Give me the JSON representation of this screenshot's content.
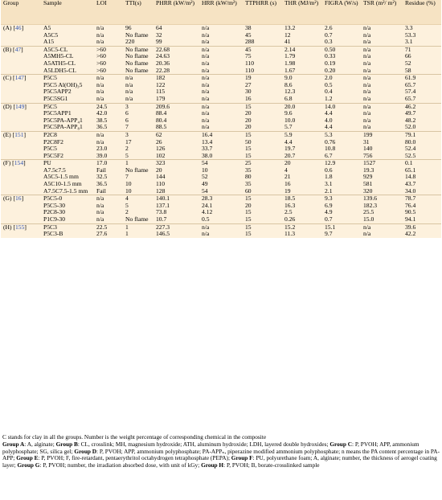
{
  "headers": [
    "Group",
    "Sample",
    "LOI",
    "TTI(s)",
    "PHRR (kW/m²)",
    "HRR (kW/m²)",
    "TTPHRR (s)",
    "THR (MJ/m²)",
    "FIGRA (W/s)",
    "TSR (m²/ m²)",
    "Residue (%)"
  ],
  "groups": [
    {
      "label": "(A) [",
      "ref": "46",
      "close": "]",
      "rows": [
        [
          "A5",
          "n/a",
          "96",
          "64",
          "n/a",
          "38",
          "13.2",
          "2.6",
          "n/a",
          "3.3"
        ],
        [
          "A5C5",
          "n/a",
          "No flame",
          "32",
          "n/a",
          "45",
          "12",
          "0.7",
          "n/a",
          "53.3"
        ],
        [
          "A15",
          "n/a",
          "220",
          "99",
          "n/a",
          "288",
          "41",
          "0.3",
          "n/a",
          "3.1"
        ]
      ]
    },
    {
      "label": "(B) [",
      "ref": "47",
      "close": "]",
      "rows": [
        [
          "A5C5-CL",
          ">60",
          "No flame",
          "22.68",
          "n/a",
          "45",
          "2.14",
          "0.50",
          "n/a",
          "71"
        ],
        [
          "A5MH5-CL",
          ">60",
          "No flame",
          "24.63",
          "n/a",
          "75",
          "1.79",
          "0.33",
          "n/a",
          "66"
        ],
        [
          "A5ATH5-CL",
          ">60",
          "No flame",
          "20.36",
          "n/a",
          "110",
          "1.98",
          "0.19",
          "n/a",
          "52"
        ],
        [
          "A5LDH5-CL",
          ">60",
          "No flame",
          "22.28",
          "n/a",
          "110",
          "1.67",
          "0.20",
          "n/a",
          "58"
        ]
      ]
    },
    {
      "label": "(C) [",
      "ref": "147",
      "close": "]",
      "rows": [
        [
          "P5C5",
          "n/a",
          "n/a",
          "182",
          "n/a",
          "19",
          "9.0",
          "2.0",
          "n/a",
          "61.9"
        ],
        [
          "P5C5 Al(OH)₃5",
          "n/a",
          "n/a",
          "122",
          "n/a",
          "27",
          "8.6",
          "0.5",
          "n/a",
          "65.7"
        ],
        [
          "P5C5APP2",
          "n/a",
          "n/a",
          "115",
          "n/a",
          "30",
          "12.3",
          "0.4",
          "n/a",
          "57.4"
        ],
        [
          "P5C5SG1",
          "n/a",
          "n/a",
          "179",
          "n/a",
          "16",
          "6.8",
          "1.2",
          "n/a",
          "65.7"
        ]
      ]
    },
    {
      "label": "(D) [",
      "ref": "149",
      "close": "]",
      "rows": [
        [
          "P5C5",
          "24.5",
          "3",
          "209.6",
          "n/a",
          "15",
          "20.0",
          "14.0",
          "n/a",
          "46.2"
        ],
        [
          "P5C5APP1",
          "42.0",
          "6",
          "88.4",
          "n/a",
          "20",
          "9.6",
          "4.4",
          "n/a",
          "49.7"
        ],
        [
          "P5C5PA-APP₄1",
          "38.5",
          "6",
          "80.4",
          "n/a",
          "20",
          "10.0",
          "4.0",
          "n/a",
          "48.2"
        ],
        [
          "P5C5PA-APP₈1",
          "36.5",
          "7",
          "88.5",
          "n/a",
          "20",
          "5.7",
          "4.4",
          "n/a",
          "52.0"
        ]
      ]
    },
    {
      "label": "(E) [",
      "ref": "151",
      "close": "]",
      "rows": [
        [
          "P2C8",
          "n/a",
          "3",
          "62",
          "16.4",
          "15",
          "5.9",
          "5.3",
          "199",
          "79.1"
        ],
        [
          "P2C8F2",
          "n/a",
          "17",
          "26",
          "13.4",
          "50",
          "4.4",
          "0.76",
          "31",
          "80.0"
        ],
        [
          "P5C5",
          "23.0",
          "2",
          "126",
          "33.7",
          "15",
          "19.7",
          "10.8",
          "140",
          "52.4"
        ],
        [
          "P5C5F2",
          "39.0",
          "5",
          "102",
          "38.0",
          "15",
          "20.7",
          "6.7",
          "756",
          "52.5"
        ]
      ]
    },
    {
      "label": "(F) [",
      "ref": "154",
      "close": "]",
      "rows": [
        [
          "PU",
          "17.0",
          "1",
          "323",
          "54",
          "25",
          "20",
          "12.9",
          "1527",
          "0.1"
        ],
        [
          "A7.5c7.5",
          "Fail",
          "No flame",
          "20",
          "10",
          "35",
          "4",
          "0.6",
          "19.3",
          "65.1"
        ],
        [
          "A5C5-1.5 mm",
          "32.5",
          "7",
          "144",
          "52",
          "80",
          "21",
          "1.8",
          "929",
          "14.8"
        ],
        [
          "A5C10-1.5 mm",
          "36.5",
          "10",
          "110",
          "49",
          "35",
          "16",
          "3.1",
          "581",
          "43.7"
        ],
        [
          "A7.5C7.5-1.5 mm",
          "Fail",
          "10",
          "128",
          "54",
          "60",
          "19",
          "2.1",
          "320",
          "34.0"
        ]
      ]
    },
    {
      "label": "(G) [",
      "ref": "16",
      "close": "]",
      "rows": [
        [
          "P5C5-0",
          "n/a",
          "4",
          "140.1",
          "28.3",
          "15",
          "18.5",
          "9.3",
          "139.6",
          "78.7"
        ],
        [
          "P5C5-30",
          "n/a",
          "5",
          "137.1",
          "24.1",
          "20",
          "16.3",
          "6.9",
          "182.3",
          "76.4"
        ],
        [
          "P2C8-30",
          "n/a",
          "2",
          "73.8",
          "4.12",
          "15",
          "2.5",
          "4.9",
          "25.5",
          "90.5"
        ],
        [
          "P1C9-30",
          "n/a",
          "No flame",
          "10.7",
          "0.5",
          "15",
          "0.26",
          "0.7",
          "15.0",
          "94.1"
        ]
      ]
    },
    {
      "label": "(H) [",
      "ref": "155",
      "close": "]",
      "rows": [
        [
          "P5C3",
          "22.5",
          "1",
          "227.3",
          "n/a",
          "15",
          "15.2",
          "15.1",
          "n/a",
          "39.6"
        ],
        [
          "P5C3-B",
          "27.6",
          "1",
          "146.5",
          "n/a",
          "15",
          "11.3",
          "9.7",
          "n/a",
          "42.2"
        ]
      ]
    }
  ],
  "footnote": [
    {
      "t": "C stands for clay in all the groups. Number is the weight percentage of corresponding chemical in the composite",
      "br": true
    },
    {
      "b": "Group A",
      "t": ": A, alginate; "
    },
    {
      "b": "Group B",
      "t": ": CL, crosslink; MH, magnesium hydroxide; ATH, aluminum hydroxide; LDH, layered double hydroxides; "
    },
    {
      "b": "Group C",
      "t": ": P, PVOH; APP, ammonium polyphosphate; SG, silica gel; "
    },
    {
      "b": "Group D",
      "t": ": P, PVOH; APP, ammonium polyphosphate; PA-APPₙ, piperazine modified ammonium polyphosphate; n means the PA content percentage in PA-APP; "
    },
    {
      "b": "Group E",
      "t": ": P, PVOH; F, fire-retardant, pentaerythritol octahydrogen tetraphosphate (PEPA); "
    },
    {
      "b": "Group F",
      "t": ": PU, polyurethane foam; A, alginate; number, the thickness of aerogel coating layer; "
    },
    {
      "b": "Group G",
      "t": ": P, PVOH; number, the irradiation absorbed dose, with unit of kGy; "
    },
    {
      "b": "Group H",
      "t": ": P, PVOH; B, borate-crosslinked sample"
    }
  ]
}
